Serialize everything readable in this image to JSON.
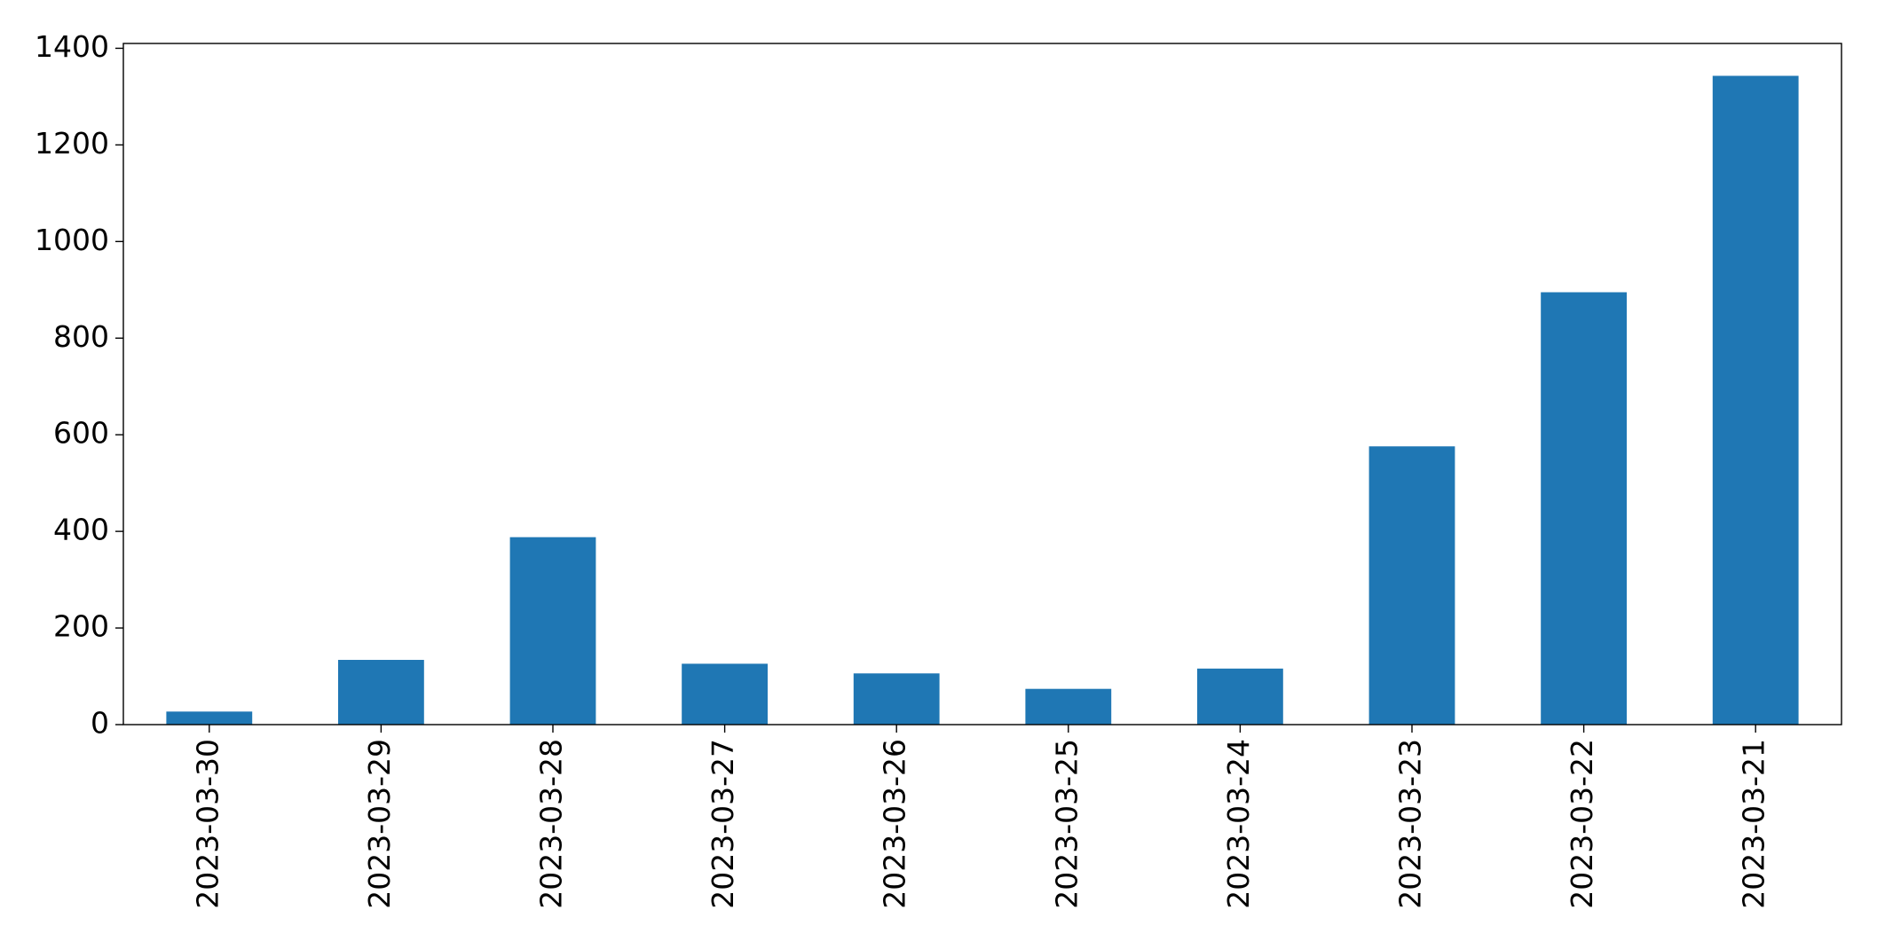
{
  "chart_data": {
    "type": "bar",
    "categories": [
      "2023-03-30",
      "2023-03-29",
      "2023-03-28",
      "2023-03-27",
      "2023-03-26",
      "2023-03-25",
      "2023-03-24",
      "2023-03-23",
      "2023-03-22",
      "2023-03-21"
    ],
    "values": [
      27,
      134,
      388,
      126,
      106,
      74,
      116,
      576,
      895,
      1343
    ],
    "color": "#1f77b4",
    "ylim": [
      0,
      1410
    ],
    "yticks": [
      0,
      200,
      400,
      600,
      800,
      1000,
      1200,
      1400
    ],
    "grid": false
  }
}
